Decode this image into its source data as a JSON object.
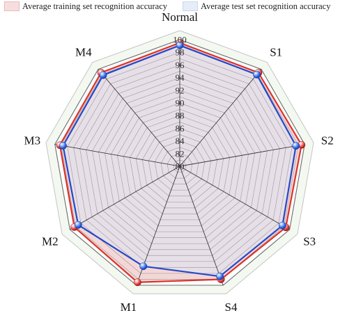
{
  "legend": {
    "train_label": "Average training set recognition accuracy",
    "test_label": "Average test set recognition accuracy"
  },
  "chart_data": {
    "type": "radar",
    "categories": [
      "Normal",
      "S1",
      "S2",
      "S3",
      "S4",
      "M1",
      "M2",
      "M3",
      "M4"
    ],
    "radial_range": [
      80,
      100
    ],
    "radial_ticks": [
      80,
      82,
      84,
      86,
      88,
      90,
      92,
      94,
      96,
      98,
      100
    ],
    "rings": 20,
    "series": [
      {
        "name": "Average training set recognition accuracy",
        "values": [
          99.5,
          99.3,
          99.5,
          99.3,
          99.0,
          99.5,
          99.2,
          99.2,
          99.3
        ],
        "color": "#d9342b",
        "fill": "#f2d3d3"
      },
      {
        "name": "Average test set recognition accuracy",
        "values": [
          99.1,
          98.9,
          98.6,
          98.7,
          98.5,
          96.8,
          98.5,
          98.7,
          98.8
        ],
        "color": "#2449c8",
        "fill": "#dde6f6"
      }
    ],
    "colors": {
      "outer_band": "#f3f9f1",
      "axis": "#3a3a3a",
      "grid": "#8e8e8e",
      "marker_blue": "#2f66e6",
      "marker_red": "#e23b3b"
    }
  }
}
